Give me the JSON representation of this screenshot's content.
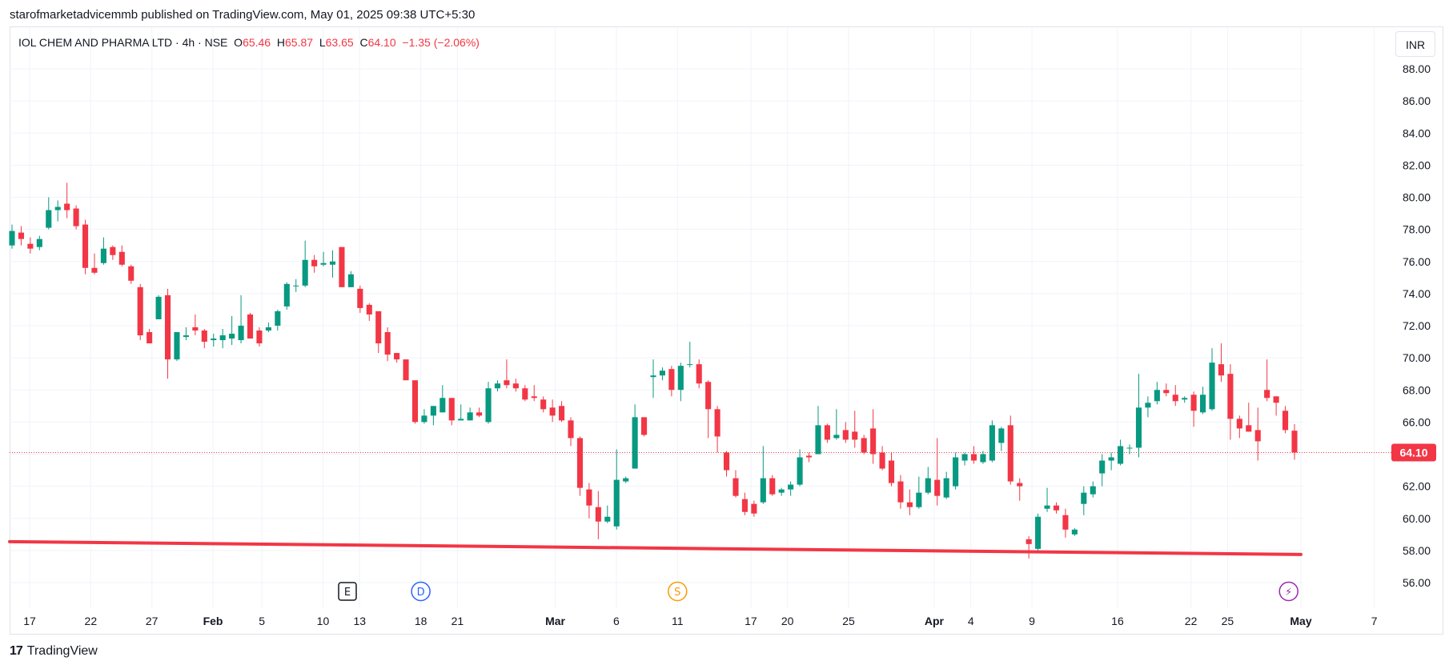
{
  "header": {
    "published_line": "starofmarketadvicemmb published on TradingView.com, May 01, 2025 09:38 UTC+5:30"
  },
  "legend": {
    "symbol": "IOL CHEM AND PHARMA LTD · 4h · NSE",
    "open_label": "O",
    "open": "65.46",
    "high_label": "H",
    "high": "65.87",
    "low_label": "L",
    "low": "63.65",
    "close_label": "C",
    "close": "64.10",
    "change": "−1.35 (−2.06%)"
  },
  "currency": "INR",
  "footer": {
    "brand": "TradingView"
  },
  "colors": {
    "up": "#089981",
    "down": "#f23645",
    "trendline": "#f23645",
    "grid": "#f0f3fa",
    "price_line": "#f23645"
  },
  "chart_data": {
    "type": "candlestick",
    "interval": "4h",
    "ylim": [
      55,
      89
    ],
    "y_ticks": [
      "56.00",
      "58.00",
      "60.00",
      "62.00",
      "64.00",
      "66.00",
      "68.00",
      "70.00",
      "72.00",
      "74.00",
      "76.00",
      "78.00",
      "80.00",
      "82.00",
      "84.00",
      "86.00",
      "88.00"
    ],
    "x_ticks": [
      {
        "label": "17",
        "date": "2025-01-17",
        "bold": false
      },
      {
        "label": "22",
        "date": "2025-01-22",
        "bold": false
      },
      {
        "label": "27",
        "date": "2025-01-27",
        "bold": false
      },
      {
        "label": "Feb",
        "date": "2025-02-01",
        "bold": true
      },
      {
        "label": "5",
        "date": "2025-02-05",
        "bold": false
      },
      {
        "label": "10",
        "date": "2025-02-10",
        "bold": false
      },
      {
        "label": "13",
        "date": "2025-02-13",
        "bold": false
      },
      {
        "label": "18",
        "date": "2025-02-18",
        "bold": false
      },
      {
        "label": "21",
        "date": "2025-02-21",
        "bold": false
      },
      {
        "label": "Mar",
        "date": "2025-03-01",
        "bold": true
      },
      {
        "label": "6",
        "date": "2025-03-06",
        "bold": false
      },
      {
        "label": "11",
        "date": "2025-03-11",
        "bold": false
      },
      {
        "label": "17",
        "date": "2025-03-17",
        "bold": false
      },
      {
        "label": "20",
        "date": "2025-03-20",
        "bold": false
      },
      {
        "label": "25",
        "date": "2025-03-25",
        "bold": false
      },
      {
        "label": "Apr",
        "date": "2025-04-01",
        "bold": true
      },
      {
        "label": "4",
        "date": "2025-04-04",
        "bold": false
      },
      {
        "label": "9",
        "date": "2025-04-09",
        "bold": false
      },
      {
        "label": "16",
        "date": "2025-04-16",
        "bold": false
      },
      {
        "label": "22",
        "date": "2025-04-22",
        "bold": false
      },
      {
        "label": "25",
        "date": "2025-04-25",
        "bold": false
      },
      {
        "label": "May",
        "date": "2025-05-01",
        "bold": true
      },
      {
        "label": "7",
        "date": "2025-05-07",
        "bold": false
      }
    ],
    "last_price": "64.10",
    "candles": [
      {
        "o": 77.0,
        "h": 78.3,
        "l": 76.8,
        "c": 77.9
      },
      {
        "o": 77.8,
        "h": 78.2,
        "l": 77.0,
        "c": 77.4
      },
      {
        "o": 77.1,
        "h": 77.5,
        "l": 76.5,
        "c": 76.8
      },
      {
        "o": 76.9,
        "h": 77.6,
        "l": 76.7,
        "c": 77.4
      },
      {
        "o": 78.1,
        "h": 80.0,
        "l": 78.0,
        "c": 79.2
      },
      {
        "o": 79.2,
        "h": 79.8,
        "l": 78.5,
        "c": 79.4
      },
      {
        "o": 79.6,
        "h": 80.9,
        "l": 78.7,
        "c": 79.2
      },
      {
        "o": 79.3,
        "h": 79.5,
        "l": 78.0,
        "c": 78.2
      },
      {
        "o": 78.3,
        "h": 78.6,
        "l": 75.2,
        "c": 75.6
      },
      {
        "o": 75.6,
        "h": 76.5,
        "l": 75.2,
        "c": 75.3
      },
      {
        "o": 75.9,
        "h": 77.5,
        "l": 75.8,
        "c": 76.8
      },
      {
        "o": 76.9,
        "h": 77.0,
        "l": 76.1,
        "c": 76.4
      },
      {
        "o": 76.6,
        "h": 77.0,
        "l": 75.7,
        "c": 75.8
      },
      {
        "o": 75.7,
        "h": 75.8,
        "l": 74.6,
        "c": 74.8
      },
      {
        "o": 74.4,
        "h": 74.6,
        "l": 71.1,
        "c": 71.4
      },
      {
        "o": 71.6,
        "h": 71.8,
        "l": 70.9,
        "c": 70.9
      },
      {
        "o": 72.4,
        "h": 73.9,
        "l": 72.4,
        "c": 73.8
      },
      {
        "o": 73.9,
        "h": 74.3,
        "l": 68.7,
        "c": 69.9
      },
      {
        "o": 69.9,
        "h": 71.6,
        "l": 69.8,
        "c": 71.6
      },
      {
        "o": 71.3,
        "h": 71.9,
        "l": 71.1,
        "c": 71.4
      },
      {
        "o": 71.9,
        "h": 72.7,
        "l": 71.4,
        "c": 71.7
      },
      {
        "o": 71.7,
        "h": 71.8,
        "l": 70.6,
        "c": 71.0
      },
      {
        "o": 71.1,
        "h": 71.5,
        "l": 70.7,
        "c": 71.2
      },
      {
        "o": 71.1,
        "h": 71.8,
        "l": 70.6,
        "c": 71.4
      },
      {
        "o": 71.2,
        "h": 72.6,
        "l": 70.8,
        "c": 71.5
      },
      {
        "o": 71.1,
        "h": 73.9,
        "l": 70.9,
        "c": 72.0
      },
      {
        "o": 72.7,
        "h": 72.8,
        "l": 71.2,
        "c": 71.2
      },
      {
        "o": 71.7,
        "h": 71.9,
        "l": 70.7,
        "c": 70.9
      },
      {
        "o": 71.7,
        "h": 72.2,
        "l": 71.6,
        "c": 71.9
      },
      {
        "o": 72.0,
        "h": 73.0,
        "l": 71.7,
        "c": 72.9
      },
      {
        "o": 73.2,
        "h": 74.7,
        "l": 73.0,
        "c": 74.6
      },
      {
        "o": 74.5,
        "h": 74.9,
        "l": 74.1,
        "c": 74.5
      },
      {
        "o": 74.5,
        "h": 77.3,
        "l": 74.4,
        "c": 76.1
      },
      {
        "o": 76.1,
        "h": 76.4,
        "l": 75.3,
        "c": 75.7
      },
      {
        "o": 75.8,
        "h": 76.6,
        "l": 75.7,
        "c": 75.9
      },
      {
        "o": 75.8,
        "h": 76.7,
        "l": 75.0,
        "c": 76.0
      },
      {
        "o": 76.9,
        "h": 76.9,
        "l": 74.4,
        "c": 74.4
      },
      {
        "o": 74.4,
        "h": 75.4,
        "l": 74.4,
        "c": 75.2
      },
      {
        "o": 74.3,
        "h": 74.5,
        "l": 72.8,
        "c": 73.1
      },
      {
        "o": 73.3,
        "h": 73.4,
        "l": 72.3,
        "c": 72.7
      },
      {
        "o": 72.9,
        "h": 72.9,
        "l": 70.3,
        "c": 70.9
      },
      {
        "o": 71.6,
        "h": 71.9,
        "l": 69.8,
        "c": 70.2
      },
      {
        "o": 70.3,
        "h": 70.3,
        "l": 69.7,
        "c": 69.9
      },
      {
        "o": 69.9,
        "h": 69.9,
        "l": 68.7,
        "c": 68.6
      },
      {
        "o": 68.6,
        "h": 68.6,
        "l": 65.9,
        "c": 66.0
      },
      {
        "o": 66.0,
        "h": 66.8,
        "l": 65.9,
        "c": 66.4
      },
      {
        "o": 66.4,
        "h": 67.0,
        "l": 65.8,
        "c": 67.0
      },
      {
        "o": 66.6,
        "h": 68.3,
        "l": 66.6,
        "c": 67.5
      },
      {
        "o": 67.5,
        "h": 67.5,
        "l": 65.8,
        "c": 66.1
      },
      {
        "o": 66.1,
        "h": 67.1,
        "l": 66.1,
        "c": 66.2
      },
      {
        "o": 66.1,
        "h": 66.9,
        "l": 66.1,
        "c": 66.6
      },
      {
        "o": 66.6,
        "h": 66.9,
        "l": 66.3,
        "c": 66.4
      },
      {
        "o": 66.0,
        "h": 68.5,
        "l": 65.9,
        "c": 68.1
      },
      {
        "o": 68.1,
        "h": 68.6,
        "l": 67.9,
        "c": 68.4
      },
      {
        "o": 68.6,
        "h": 69.9,
        "l": 68.1,
        "c": 68.3
      },
      {
        "o": 68.4,
        "h": 68.7,
        "l": 67.9,
        "c": 68.1
      },
      {
        "o": 68.1,
        "h": 68.3,
        "l": 67.3,
        "c": 67.4
      },
      {
        "o": 67.6,
        "h": 68.3,
        "l": 67.3,
        "c": 67.5
      },
      {
        "o": 67.4,
        "h": 67.6,
        "l": 66.6,
        "c": 66.8
      },
      {
        "o": 66.9,
        "h": 67.4,
        "l": 66.0,
        "c": 66.4
      },
      {
        "o": 67.0,
        "h": 67.3,
        "l": 66.0,
        "c": 66.1
      },
      {
        "o": 66.1,
        "h": 66.3,
        "l": 64.5,
        "c": 65.0
      },
      {
        "o": 65.0,
        "h": 65.1,
        "l": 61.4,
        "c": 61.9
      },
      {
        "o": 61.8,
        "h": 62.2,
        "l": 60.0,
        "c": 60.8
      },
      {
        "o": 60.7,
        "h": 61.7,
        "l": 58.7,
        "c": 59.8
      },
      {
        "o": 59.8,
        "h": 60.8,
        "l": 59.7,
        "c": 60.1
      },
      {
        "o": 59.5,
        "h": 64.3,
        "l": 59.3,
        "c": 62.4
      },
      {
        "o": 62.3,
        "h": 62.6,
        "l": 62.2,
        "c": 62.5
      },
      {
        "o": 63.1,
        "h": 67.1,
        "l": 63.1,
        "c": 66.3
      },
      {
        "o": 66.3,
        "h": 66.3,
        "l": 65.1,
        "c": 65.2
      },
      {
        "o": 68.8,
        "h": 69.9,
        "l": 67.5,
        "c": 68.9
      },
      {
        "o": 68.9,
        "h": 69.4,
        "l": 68.6,
        "c": 69.2
      },
      {
        "o": 69.3,
        "h": 69.5,
        "l": 67.6,
        "c": 68.0
      },
      {
        "o": 68.0,
        "h": 69.7,
        "l": 67.3,
        "c": 69.5
      },
      {
        "o": 69.6,
        "h": 71.0,
        "l": 69.4,
        "c": 69.6
      },
      {
        "o": 69.6,
        "h": 69.9,
        "l": 68.1,
        "c": 68.4
      },
      {
        "o": 68.5,
        "h": 68.6,
        "l": 65.0,
        "c": 66.8
      },
      {
        "o": 66.8,
        "h": 67.0,
        "l": 64.1,
        "c": 65.1
      },
      {
        "o": 64.1,
        "h": 64.2,
        "l": 62.6,
        "c": 63.0
      },
      {
        "o": 62.5,
        "h": 63.0,
        "l": 61.3,
        "c": 61.4
      },
      {
        "o": 61.2,
        "h": 61.6,
        "l": 60.2,
        "c": 60.4
      },
      {
        "o": 60.9,
        "h": 61.1,
        "l": 60.1,
        "c": 60.3
      },
      {
        "o": 61.0,
        "h": 64.5,
        "l": 60.9,
        "c": 62.5
      },
      {
        "o": 62.5,
        "h": 62.7,
        "l": 61.4,
        "c": 61.5
      },
      {
        "o": 61.6,
        "h": 61.9,
        "l": 61.4,
        "c": 61.8
      },
      {
        "o": 61.8,
        "h": 62.3,
        "l": 61.4,
        "c": 62.1
      },
      {
        "o": 62.1,
        "h": 64.3,
        "l": 62.0,
        "c": 63.8
      },
      {
        "o": 63.9,
        "h": 64.1,
        "l": 63.5,
        "c": 63.8
      },
      {
        "o": 64.0,
        "h": 67.0,
        "l": 64.0,
        "c": 65.8
      },
      {
        "o": 65.8,
        "h": 65.9,
        "l": 64.7,
        "c": 64.9
      },
      {
        "o": 65.0,
        "h": 66.8,
        "l": 64.9,
        "c": 65.2
      },
      {
        "o": 65.5,
        "h": 66.0,
        "l": 64.7,
        "c": 64.9
      },
      {
        "o": 65.4,
        "h": 66.7,
        "l": 64.4,
        "c": 64.9
      },
      {
        "o": 65.0,
        "h": 65.2,
        "l": 64.0,
        "c": 64.1
      },
      {
        "o": 65.6,
        "h": 66.8,
        "l": 63.4,
        "c": 64.0
      },
      {
        "o": 64.1,
        "h": 64.5,
        "l": 63.0,
        "c": 63.1
      },
      {
        "o": 63.6,
        "h": 64.1,
        "l": 62.0,
        "c": 62.2
      },
      {
        "o": 62.3,
        "h": 62.7,
        "l": 60.6,
        "c": 61.0
      },
      {
        "o": 61.0,
        "h": 61.8,
        "l": 60.2,
        "c": 60.7
      },
      {
        "o": 60.7,
        "h": 62.6,
        "l": 60.6,
        "c": 61.6
      },
      {
        "o": 61.6,
        "h": 63.2,
        "l": 61.5,
        "c": 62.5
      },
      {
        "o": 62.4,
        "h": 65.0,
        "l": 60.8,
        "c": 61.4
      },
      {
        "o": 61.3,
        "h": 62.9,
        "l": 61.2,
        "c": 62.5
      },
      {
        "o": 62.0,
        "h": 64.1,
        "l": 61.8,
        "c": 63.8
      },
      {
        "o": 63.6,
        "h": 64.1,
        "l": 63.3,
        "c": 64.0
      },
      {
        "o": 64.0,
        "h": 64.5,
        "l": 63.4,
        "c": 63.6
      },
      {
        "o": 63.5,
        "h": 64.2,
        "l": 63.4,
        "c": 64.0
      },
      {
        "o": 63.6,
        "h": 66.1,
        "l": 63.5,
        "c": 65.8
      },
      {
        "o": 64.7,
        "h": 65.7,
        "l": 64.2,
        "c": 65.6
      },
      {
        "o": 65.8,
        "h": 66.4,
        "l": 62.1,
        "c": 62.3
      },
      {
        "o": 62.2,
        "h": 62.5,
        "l": 61.1,
        "c": 62.0
      },
      {
        "o": 58.7,
        "h": 58.9,
        "l": 57.5,
        "c": 58.4
      },
      {
        "o": 58.1,
        "h": 60.3,
        "l": 58.0,
        "c": 60.1
      },
      {
        "o": 60.6,
        "h": 61.9,
        "l": 60.4,
        "c": 60.8
      },
      {
        "o": 60.8,
        "h": 61.0,
        "l": 60.3,
        "c": 60.5
      },
      {
        "o": 60.2,
        "h": 60.6,
        "l": 58.8,
        "c": 59.3
      },
      {
        "o": 59.0,
        "h": 59.4,
        "l": 58.9,
        "c": 59.3
      },
      {
        "o": 60.9,
        "h": 62.0,
        "l": 60.2,
        "c": 61.6
      },
      {
        "o": 61.5,
        "h": 62.3,
        "l": 61.3,
        "c": 62.0
      },
      {
        "o": 62.8,
        "h": 64.0,
        "l": 62.0,
        "c": 63.6
      },
      {
        "o": 63.6,
        "h": 64.1,
        "l": 63.0,
        "c": 63.8
      },
      {
        "o": 63.4,
        "h": 64.9,
        "l": 63.3,
        "c": 64.5
      },
      {
        "o": 64.4,
        "h": 64.6,
        "l": 64.0,
        "c": 64.4
      },
      {
        "o": 64.4,
        "h": 69.0,
        "l": 63.8,
        "c": 66.9
      },
      {
        "o": 66.9,
        "h": 67.6,
        "l": 66.3,
        "c": 67.2
      },
      {
        "o": 67.3,
        "h": 68.5,
        "l": 67.1,
        "c": 68.0
      },
      {
        "o": 68.0,
        "h": 68.4,
        "l": 67.6,
        "c": 67.8
      },
      {
        "o": 67.7,
        "h": 68.3,
        "l": 67.0,
        "c": 67.3
      },
      {
        "o": 67.4,
        "h": 67.6,
        "l": 67.2,
        "c": 67.5
      },
      {
        "o": 67.7,
        "h": 67.9,
        "l": 65.7,
        "c": 66.7
      },
      {
        "o": 66.6,
        "h": 68.2,
        "l": 66.5,
        "c": 67.7
      },
      {
        "o": 66.8,
        "h": 70.6,
        "l": 66.7,
        "c": 69.7
      },
      {
        "o": 69.6,
        "h": 70.9,
        "l": 68.5,
        "c": 68.9
      },
      {
        "o": 69.0,
        "h": 69.6,
        "l": 64.9,
        "c": 66.2
      },
      {
        "o": 66.2,
        "h": 66.4,
        "l": 65.0,
        "c": 65.6
      },
      {
        "o": 65.8,
        "h": 67.2,
        "l": 65.4,
        "c": 65.4
      },
      {
        "o": 65.5,
        "h": 66.9,
        "l": 63.6,
        "c": 64.8
      },
      {
        "o": 68.0,
        "h": 69.9,
        "l": 67.3,
        "c": 67.5
      },
      {
        "o": 67.6,
        "h": 67.6,
        "l": 66.4,
        "c": 67.2
      },
      {
        "o": 66.7,
        "h": 67.0,
        "l": 65.3,
        "c": 65.5
      },
      {
        "o": 65.46,
        "h": 65.87,
        "l": 63.65,
        "c": 64.1
      }
    ],
    "trendline": {
      "from_date": "2025-01-15",
      "from_price": 58.55,
      "to_date": "2025-05-01",
      "to_price": 57.75
    },
    "events": [
      {
        "label": "E",
        "date": "2025-02-12",
        "color": "#131722",
        "shape": "square"
      },
      {
        "label": "D",
        "date": "2025-02-18",
        "color": "#2962ff",
        "shape": "circle"
      },
      {
        "label": "S",
        "date": "2025-03-11",
        "color": "#ff9800",
        "shape": "circle"
      },
      {
        "label": "⚡",
        "date": "2025-04-30",
        "color": "#9c27b0",
        "shape": "circle"
      }
    ]
  }
}
